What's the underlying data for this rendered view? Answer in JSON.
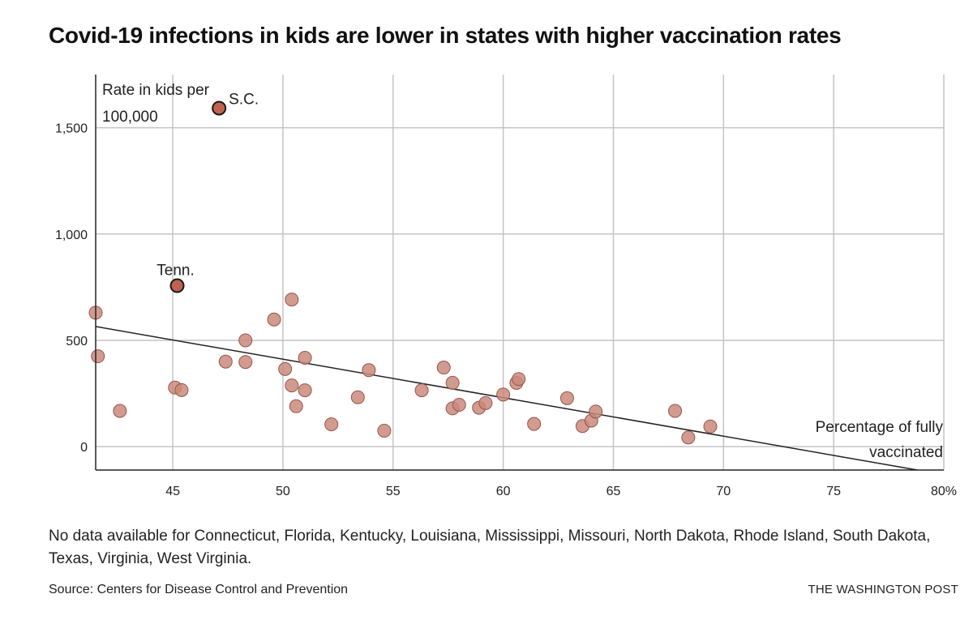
{
  "title": "Covid-19 infections in kids are lower in states with higher vaccination rates",
  "note": "No data available for Connecticut, Florida, Kentucky, Louisiana, Mississippi, Missouri, North Dakota, Rhode Island, South Dakota, Texas, Virginia, West Virginia.",
  "source": "Source: Centers for Disease Control and Prevention",
  "credit": "THE WASHINGTON POST",
  "colors": {
    "dot_fill": "#c98a7c",
    "dot_stroke": "#9a5448",
    "highlight_fill": "#c0624f",
    "highlight_stroke": "#1a1a1a",
    "grid": "#c4c4c4",
    "axis": "#222222",
    "trend": "#222222"
  },
  "chart_data": {
    "type": "scatter",
    "ylabel_lines": [
      "Rate in kids per",
      "100,000"
    ],
    "xlabel_lines": [
      "Percentage of fully",
      "vaccinated"
    ],
    "xlim": [
      41.5,
      80
    ],
    "ylim": [
      -110,
      1750
    ],
    "x_ticks": [
      45,
      50,
      55,
      60,
      65,
      70,
      75,
      80
    ],
    "x_tick_labels": [
      "45",
      "50",
      "55",
      "60",
      "65",
      "70",
      "75",
      "80%"
    ],
    "y_ticks": [
      0,
      500,
      1000,
      1500
    ],
    "y_tick_labels": [
      "0",
      "500",
      "1,000",
      "1,500"
    ],
    "grid": true,
    "points": [
      {
        "x": 41.5,
        "y": 630
      },
      {
        "x": 41.6,
        "y": 425
      },
      {
        "x": 42.6,
        "y": 168
      },
      {
        "x": 45.1,
        "y": 278
      },
      {
        "x": 45.4,
        "y": 266
      },
      {
        "x": 47.4,
        "y": 400
      },
      {
        "x": 48.3,
        "y": 500
      },
      {
        "x": 48.3,
        "y": 398
      },
      {
        "x": 49.6,
        "y": 598
      },
      {
        "x": 50.1,
        "y": 365
      },
      {
        "x": 50.4,
        "y": 692
      },
      {
        "x": 50.4,
        "y": 288
      },
      {
        "x": 50.6,
        "y": 190
      },
      {
        "x": 51.0,
        "y": 418
      },
      {
        "x": 51.0,
        "y": 265
      },
      {
        "x": 52.2,
        "y": 105
      },
      {
        "x": 53.4,
        "y": 232
      },
      {
        "x": 53.9,
        "y": 360
      },
      {
        "x": 54.6,
        "y": 75
      },
      {
        "x": 56.3,
        "y": 265
      },
      {
        "x": 57.3,
        "y": 372
      },
      {
        "x": 57.7,
        "y": 300
      },
      {
        "x": 57.7,
        "y": 180
      },
      {
        "x": 58.0,
        "y": 197
      },
      {
        "x": 58.9,
        "y": 183
      },
      {
        "x": 59.2,
        "y": 205
      },
      {
        "x": 60.0,
        "y": 245
      },
      {
        "x": 60.6,
        "y": 300
      },
      {
        "x": 60.7,
        "y": 318
      },
      {
        "x": 61.4,
        "y": 107
      },
      {
        "x": 62.9,
        "y": 228
      },
      {
        "x": 63.6,
        "y": 97
      },
      {
        "x": 64.0,
        "y": 122
      },
      {
        "x": 64.2,
        "y": 165
      },
      {
        "x": 67.8,
        "y": 168
      },
      {
        "x": 68.4,
        "y": 43
      },
      {
        "x": 69.4,
        "y": 95
      }
    ],
    "highlighted": [
      {
        "label": "S.C.",
        "x": 47.1,
        "y": 1592
      },
      {
        "label": "Tenn.",
        "x": 45.2,
        "y": 757
      }
    ],
    "trendline": {
      "x": [
        41.5,
        78.8
      ],
      "y": [
        565,
        -110
      ]
    }
  }
}
